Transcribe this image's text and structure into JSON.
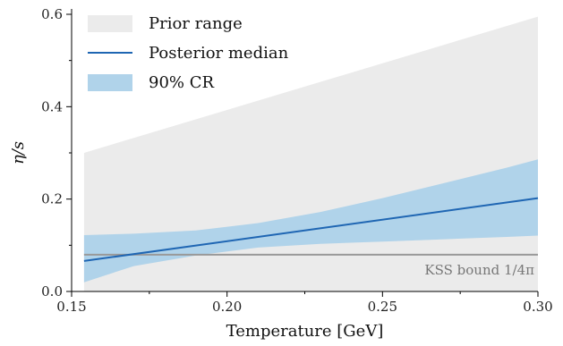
{
  "chart_data": {
    "type": "area",
    "xlabel": "Temperature [GeV]",
    "ylabel": "η/s",
    "xlim": [
      0.15,
      0.3
    ],
    "ylim": [
      0.0,
      0.6
    ],
    "xticks": [
      0.15,
      0.2,
      0.25,
      0.3
    ],
    "xtick_labels": [
      "0.15",
      "0.20",
      "0.25",
      "0.30"
    ],
    "yticks": [
      0.0,
      0.2,
      0.4,
      0.6
    ],
    "ytick_labels": [
      "0.0",
      "0.2",
      "0.4",
      "0.6"
    ],
    "grid": false,
    "legend_position": "top-left",
    "legend": [
      {
        "label": "Prior range",
        "kind": "band",
        "color": "#ebebeb"
      },
      {
        "label": "Posterior median",
        "kind": "line",
        "color": "#1f66b3"
      },
      {
        "label": "90% CR",
        "kind": "band",
        "color": "#b0d3ea"
      }
    ],
    "series": [
      {
        "name": "Prior range",
        "kind": "band",
        "color": "#ebebeb",
        "x": [
          0.154,
          0.3
        ],
        "lower": [
          0.0,
          0.0
        ],
        "upper": [
          0.3,
          0.595
        ]
      },
      {
        "name": "90% CR",
        "kind": "band",
        "color": "#b0d3ea",
        "x": [
          0.154,
          0.17,
          0.19,
          0.21,
          0.23,
          0.25,
          0.27,
          0.29,
          0.3
        ],
        "lower": [
          0.02,
          0.055,
          0.078,
          0.095,
          0.103,
          0.108,
          0.113,
          0.118,
          0.121
        ],
        "upper": [
          0.122,
          0.125,
          0.132,
          0.148,
          0.172,
          0.202,
          0.235,
          0.268,
          0.286
        ]
      },
      {
        "name": "Posterior median",
        "kind": "line",
        "color": "#1f66b3",
        "x": [
          0.154,
          0.3
        ],
        "y": [
          0.066,
          0.202
        ]
      }
    ],
    "reference_line": {
      "label": "KSS bound 1/4π",
      "y": 0.0796,
      "x": [
        0.154,
        0.3
      ],
      "color": "#999999"
    }
  }
}
